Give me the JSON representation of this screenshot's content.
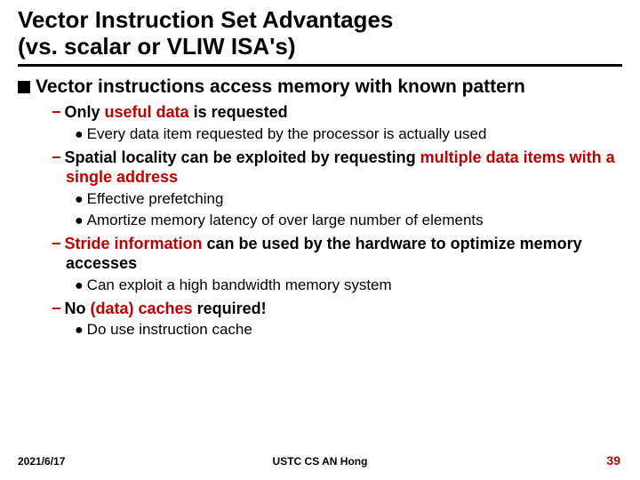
{
  "title_line1": "Vector Instruction Set Advantages",
  "title_line2": "(vs. scalar or VLIW ISA's)",
  "l1_text": "Vector instructions access memory with known pattern",
  "p1": {
    "pre": "Only ",
    "hl": "useful data",
    "post": " is requested"
  },
  "p1_sub1": "Every data item requested by the processor is actually used",
  "p2": {
    "pre": "Spatial locality can be exploited by requesting ",
    "hl": "multiple data items with a single address",
    "post": ""
  },
  "p2_sub1": "Effective prefetching",
  "p2_sub2": "Amortize memory latency of over large number of elements",
  "p3": {
    "hl": "Stride information",
    "post": " can be used by the hardware to optimize memory accesses"
  },
  "p3_sub1": "Can exploit a high bandwidth memory system",
  "p4": {
    "pre": "No ",
    "hl": "(data) caches",
    "post": " required!"
  },
  "p4_sub1": "Do use instruction cache",
  "footer": {
    "date": "2021/6/17",
    "center": "USTC CS AN Hong",
    "page": "39"
  },
  "colors": {
    "accent": "#c00000",
    "text": "#000000",
    "bg": "#ffffff"
  }
}
